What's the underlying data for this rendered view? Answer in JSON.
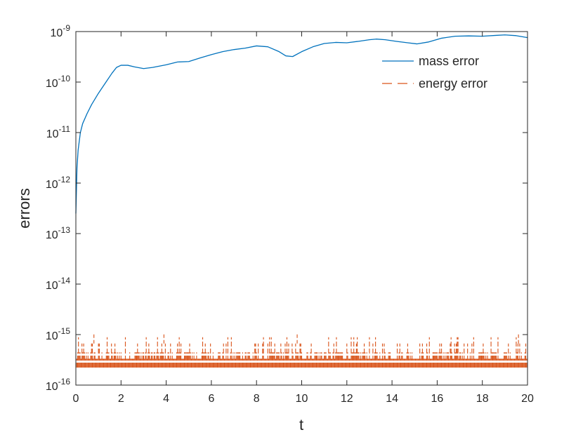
{
  "chart_data": {
    "type": "line",
    "title": "",
    "xlabel": "t",
    "ylabel": "errors",
    "xlim": [
      0,
      20
    ],
    "ylim": [
      1e-16,
      1e-09
    ],
    "yscale": "log",
    "grid": false,
    "legend_position": "top-right",
    "x_ticks": [
      0,
      2,
      4,
      6,
      8,
      10,
      12,
      14,
      16,
      18,
      20
    ],
    "x_tick_labels": [
      "0",
      "2",
      "4",
      "6",
      "8",
      "10",
      "12",
      "14",
      "16",
      "18",
      "20"
    ],
    "y_tick_exponents": [
      "-16",
      "-15",
      "-14",
      "-13",
      "-12",
      "-11",
      "-10",
      "-9"
    ],
    "y_tick_base": "10",
    "series": [
      {
        "name": "mass error",
        "color": "#0072BD",
        "style": "solid",
        "x": [
          0,
          0.05,
          0.1,
          0.2,
          0.3,
          0.5,
          0.7,
          1.0,
          1.3,
          1.6,
          1.8,
          2.0,
          2.3,
          2.6,
          3.0,
          3.4,
          4.0,
          4.5,
          5.0,
          5.5,
          6.0,
          6.5,
          7.0,
          7.5,
          8.0,
          8.5,
          9.0,
          9.3,
          9.6,
          10.0,
          10.5,
          11.0,
          11.5,
          12.0,
          12.5,
          13.0,
          13.3,
          13.7,
          14.2,
          14.7,
          15.1,
          15.6,
          16.2,
          16.8,
          17.4,
          18.0,
          18.6,
          19.0,
          19.5,
          20.0
        ],
        "values": [
          2.5e-13,
          2e-12,
          4.5e-12,
          1e-11,
          1.5e-11,
          2.4e-11,
          3.6e-11,
          6e-11,
          9.5e-11,
          1.5e-10,
          1.95e-10,
          2.15e-10,
          2.15e-10,
          2e-10,
          1.85e-10,
          1.95e-10,
          2.2e-10,
          2.5e-10,
          2.55e-10,
          3e-10,
          3.5e-10,
          4e-10,
          4.4e-10,
          4.7e-10,
          5.2e-10,
          5e-10,
          4e-10,
          3.3e-10,
          3.2e-10,
          4e-10,
          5e-10,
          5.8e-10,
          6.1e-10,
          6e-10,
          6.4e-10,
          6.9e-10,
          7.1e-10,
          6.9e-10,
          6.4e-10,
          6e-10,
          5.7e-10,
          6.2e-10,
          7.4e-10,
          8.1e-10,
          8.2e-10,
          8.1e-10,
          8.4e-10,
          8.6e-10,
          8.3e-10,
          7.6e-10
        ]
      },
      {
        "name": "energy error",
        "color": "#D95319",
        "style": "dashed",
        "x_range": [
          0,
          20
        ],
        "noise_floor": 2.22e-16,
        "levels": [
          2.22e-16,
          3.33e-16,
          4.44e-16,
          6.66e-16,
          8.88e-16
        ],
        "peak": 1.11e-15
      }
    ]
  }
}
